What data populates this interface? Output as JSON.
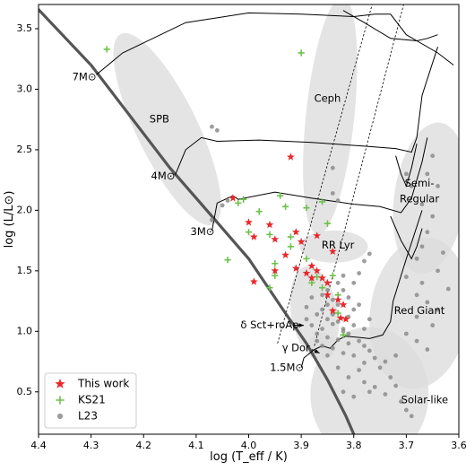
{
  "chart_data": {
    "type": "scatter",
    "xlabel": "log (T_eff / K)",
    "ylabel": "log (L/L⊙)",
    "xlim": [
      4.4,
      3.6
    ],
    "ylim": [
      0.15,
      3.7
    ],
    "x_ticks": [
      4.4,
      4.3,
      4.2,
      4.1,
      4.0,
      3.9,
      3.8,
      3.7,
      3.6
    ],
    "y_ticks": [
      0.5,
      1.0,
      1.5,
      2.0,
      2.5,
      3.0,
      3.5
    ],
    "x_tick_labels": [
      "4.4",
      "4.3",
      "4.2",
      "4.1",
      "4.0",
      "3.9",
      "3.8",
      "3.7",
      "3.6"
    ],
    "y_tick_labels": [
      "0.5",
      "1.0",
      "1.5",
      "2.0",
      "2.5",
      "3.0",
      "3.5"
    ],
    "region_labels": [
      {
        "text": "SPB",
        "x": 4.17,
        "y": 2.75
      },
      {
        "text": "Ceph",
        "x": 3.85,
        "y": 2.92
      },
      {
        "text": "Semi-",
        "x": 3.675,
        "y": 2.22
      },
      {
        "text": "Regular",
        "x": 3.675,
        "y": 2.09
      },
      {
        "text": "RR Lyr",
        "x": 3.83,
        "y": 1.71
      },
      {
        "text": "Red Giant",
        "x": 3.675,
        "y": 1.17
      },
      {
        "text": "Solar-like",
        "x": 3.665,
        "y": 0.43
      },
      {
        "text": "δ Sct+roAp",
        "x": 3.96,
        "y": 1.05
      },
      {
        "text": "γ Dor",
        "x": 3.91,
        "y": 0.86
      }
    ],
    "mass_labels": [
      {
        "text": "7M⊙",
        "x": 4.29,
        "y": 3.1
      },
      {
        "text": "4M⊙",
        "x": 4.14,
        "y": 2.28
      },
      {
        "text": "3M⊙",
        "x": 4.065,
        "y": 1.82
      },
      {
        "text": "1.5M⊙",
        "x": 3.895,
        "y": 0.7
      }
    ],
    "legend": {
      "placement": "lower-left",
      "entries": [
        "This work",
        "KS21",
        "L23"
      ]
    },
    "series": [
      {
        "name": "This work",
        "marker": "star",
        "color": "#e8282a",
        "points": [
          [
            4.03,
            2.1
          ],
          [
            3.92,
            2.44
          ],
          [
            4.0,
            1.9
          ],
          [
            3.96,
            1.88
          ],
          [
            3.99,
            1.78
          ],
          [
            3.95,
            1.76
          ],
          [
            3.91,
            1.82
          ],
          [
            3.9,
            1.74
          ],
          [
            3.87,
            1.79
          ],
          [
            3.93,
            1.63
          ],
          [
            3.95,
            1.5
          ],
          [
            3.91,
            1.52
          ],
          [
            3.89,
            1.48
          ],
          [
            3.88,
            1.54
          ],
          [
            3.87,
            1.5
          ],
          [
            3.86,
            1.44
          ],
          [
            3.85,
            1.4
          ],
          [
            3.84,
            1.66
          ],
          [
            3.88,
            1.44
          ],
          [
            3.85,
            1.3
          ],
          [
            3.83,
            1.26
          ],
          [
            3.84,
            1.17
          ],
          [
            3.82,
            1.22
          ],
          [
            3.825,
            1.11
          ],
          [
            3.815,
            1.1
          ],
          [
            3.99,
            1.41
          ]
        ]
      },
      {
        "name": "KS21",
        "marker": "plus",
        "color": "#6cc24a",
        "points": [
          [
            4.27,
            3.33
          ],
          [
            3.9,
            3.3
          ],
          [
            4.02,
            2.06
          ],
          [
            4.01,
            2.09
          ],
          [
            3.94,
            2.12
          ],
          [
            3.93,
            2.03
          ],
          [
            3.89,
            2.02
          ],
          [
            3.86,
            2.07
          ],
          [
            3.98,
            1.99
          ],
          [
            4.0,
            1.82
          ],
          [
            3.96,
            1.8
          ],
          [
            3.92,
            1.78
          ],
          [
            4.04,
            1.59
          ],
          [
            3.95,
            1.56
          ],
          [
            3.95,
            1.46
          ],
          [
            3.96,
            1.36
          ],
          [
            3.92,
            1.7
          ],
          [
            3.89,
            1.6
          ],
          [
            3.88,
            1.4
          ],
          [
            3.86,
            1.36
          ],
          [
            3.84,
            1.46
          ],
          [
            3.83,
            1.3
          ],
          [
            3.85,
            1.89
          ],
          [
            3.87,
            1.45
          ],
          [
            3.82,
            0.97
          ],
          [
            3.83,
            1.15
          ]
        ]
      },
      {
        "name": "L23",
        "marker": "circle",
        "color": "#8c8c8c",
        "points": [
          [
            4.07,
            2.69
          ],
          [
            4.06,
            2.66
          ],
          [
            4.07,
            1.92
          ],
          [
            4.05,
            2.04
          ],
          [
            4.04,
            2.08
          ],
          [
            3.84,
            2.35
          ],
          [
            3.84,
            2.14
          ],
          [
            3.83,
            2.08
          ],
          [
            3.7,
            2.3
          ],
          [
            3.69,
            2.2
          ],
          [
            3.67,
            2.05
          ],
          [
            3.66,
            2.3
          ],
          [
            3.65,
            2.45
          ],
          [
            3.64,
            2.2
          ],
          [
            3.65,
            1.95
          ],
          [
            3.66,
            1.82
          ],
          [
            3.67,
            1.7
          ],
          [
            3.63,
            1.65
          ],
          [
            3.68,
            1.6
          ],
          [
            3.64,
            1.5
          ],
          [
            3.7,
            1.45
          ],
          [
            3.67,
            1.4
          ],
          [
            3.62,
            1.35
          ],
          [
            3.68,
            1.3
          ],
          [
            3.66,
            1.24
          ],
          [
            3.64,
            1.18
          ],
          [
            3.68,
            1.12
          ],
          [
            3.65,
            1.05
          ],
          [
            3.7,
            0.98
          ],
          [
            3.68,
            0.92
          ],
          [
            3.66,
            0.85
          ],
          [
            3.72,
            0.8
          ],
          [
            3.74,
            0.75
          ],
          [
            3.75,
            0.7
          ],
          [
            3.73,
            0.62
          ],
          [
            3.72,
            0.55
          ],
          [
            3.74,
            0.48
          ],
          [
            3.71,
            0.42
          ],
          [
            3.7,
            0.35
          ],
          [
            3.69,
            0.3
          ],
          [
            3.82,
            1.46
          ],
          [
            3.83,
            1.4
          ],
          [
            3.85,
            1.34
          ],
          [
            3.86,
            1.3
          ],
          [
            3.84,
            1.26
          ],
          [
            3.83,
            1.22
          ],
          [
            3.86,
            1.18
          ],
          [
            3.87,
            1.14
          ],
          [
            3.85,
            1.1
          ],
          [
            3.84,
            1.06
          ],
          [
            3.82,
            1.02
          ],
          [
            3.86,
            1.02
          ],
          [
            3.88,
            1.05
          ],
          [
            3.87,
            0.98
          ],
          [
            3.85,
            0.95
          ],
          [
            3.83,
            0.93
          ],
          [
            3.81,
            0.98
          ],
          [
            3.8,
            1.05
          ],
          [
            3.81,
            1.12
          ],
          [
            3.8,
            1.18
          ],
          [
            3.79,
            1.22
          ],
          [
            3.81,
            1.28
          ],
          [
            3.82,
            1.34
          ],
          [
            3.8,
            1.4
          ],
          [
            3.86,
            0.88
          ],
          [
            3.84,
            0.86
          ],
          [
            3.82,
            0.82
          ],
          [
            3.8,
            0.8
          ],
          [
            3.78,
            0.74
          ],
          [
            3.79,
            0.68
          ],
          [
            3.81,
            0.62
          ],
          [
            3.78,
            0.58
          ],
          [
            3.76,
            0.54
          ],
          [
            3.77,
            0.5
          ],
          [
            3.8,
            0.46
          ],
          [
            3.82,
            0.5
          ],
          [
            3.83,
            0.7
          ],
          [
            3.85,
            0.8
          ],
          [
            3.87,
            0.92
          ],
          [
            3.89,
            1.2
          ],
          [
            3.88,
            1.28
          ],
          [
            3.89,
            1.1
          ],
          [
            3.85,
            1.22
          ],
          [
            3.84,
            1.14
          ],
          [
            3.83,
            1.08
          ],
          [
            3.82,
            1.0
          ],
          [
            3.81,
            0.9
          ],
          [
            3.79,
            0.92
          ],
          [
            3.78,
            0.88
          ],
          [
            3.77,
            0.84
          ],
          [
            3.76,
            0.78
          ],
          [
            3.78,
            1.02
          ],
          [
            3.77,
            1.1
          ],
          [
            3.79,
            1.48
          ],
          [
            3.78,
            1.58
          ],
          [
            3.77,
            1.64
          ]
        ]
      }
    ],
    "colors": {
      "region_fill": "#dcdcdc",
      "track": "#000000",
      "zams": "#555555",
      "instability_strip": "#000000"
    }
  }
}
